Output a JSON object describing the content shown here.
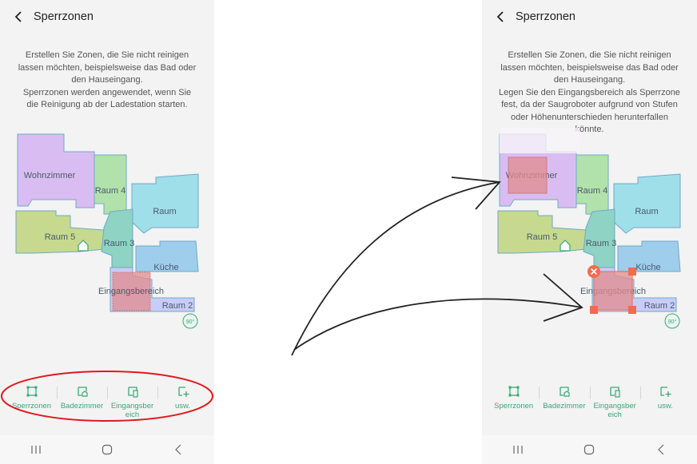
{
  "left_screen": {
    "title": "Sperrzonen",
    "description": "Erstellen Sie Zonen, die Sie nicht reinigen lassen möchten, beispielsweise das Bad oder den Hauseingang.\nSperrzonen werden angewendet, wenn Sie die Reinigung ab der Ladestation starten."
  },
  "right_screen": {
    "title": "Sperrzonen",
    "description": "Erstellen Sie Zonen, die Sie nicht reinigen lassen möchten, beispielsweise das Bad oder den Hauseingang.\nLegen Sie den Eingangsbereich als Sperrzone fest, da der Saugroboter aufgrund von Stufen oder Höhenunterschieden herunterfallen könnte."
  },
  "map": {
    "rooms": [
      "Wohnzimmer",
      "Raum 4",
      "Raum",
      "Raum 5",
      "Raum 3",
      "Küche",
      "Raum 2",
      "Eingangsbereich"
    ],
    "rotate_label": "90°",
    "colors": {
      "wohnzimmer": "#d9bdf2",
      "raum4": "#b1e2ab",
      "raum": "#9fdfe9",
      "raum5": "#c6d98f",
      "raum3": "#8ed3c3",
      "kueche": "#9fcdec",
      "raum2": "#c9ccf8",
      "zone": "#e28d8d",
      "handle": "#f26a4f"
    }
  },
  "toolbar": {
    "items": [
      "Sperrzonen",
      "Badezimmer",
      "Eingangsbereich",
      "usw."
    ]
  },
  "accent_color": "#3aa77a",
  "annotation_color": "#e0191e"
}
